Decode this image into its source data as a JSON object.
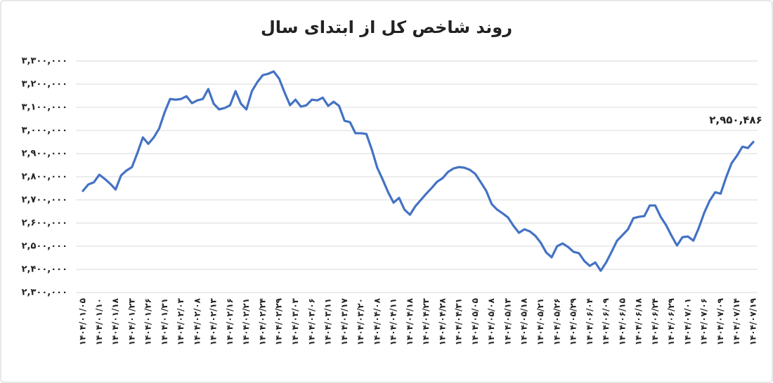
{
  "chart_data": {
    "type": "line",
    "title": "روند شاخص کل از ابتدای سال",
    "categories": [
      "۱۴۰۴/۰۱/۰۵",
      null,
      null,
      "۱۴۰۴/۰۱/۱۰",
      null,
      null,
      "۱۴۰۴/۰۱/۱۸",
      null,
      null,
      "۱۴۰۴/۰۱/۲۳",
      null,
      null,
      "۱۴۰۴/۰۱/۲۶",
      null,
      null,
      "۱۴۰۴/۰۱/۳۱",
      null,
      null,
      "۱۴۰۴/۰۲/۰۳",
      null,
      null,
      "۱۴۰۴/۰۲/۰۸",
      null,
      null,
      "۱۴۰۴/۰۲/۱۳",
      null,
      null,
      "۱۴۰۴/۰۲/۱۶",
      null,
      null,
      "۱۴۰۴/۰۲/۲۱",
      null,
      null,
      "۱۴۰۴/۰۲/۲۴",
      null,
      null,
      "۱۴۰۴/۰۲/۲۹",
      null,
      null,
      "۱۴۰۴/۰۳/۰۳",
      null,
      null,
      "۱۴۰۴/۰۳/۰۶",
      null,
      null,
      "۱۴۰۴/۰۳/۱۱",
      null,
      null,
      "۱۴۰۴/۰۳/۱۷",
      null,
      null,
      "۱۴۰۴/۰۳/۲۰",
      null,
      null,
      "۱۴۰۴/۰۴/۰۸",
      null,
      null,
      "۱۴۰۴/۰۴/۱۱",
      null,
      null,
      "۱۴۰۴/۰۴/۱۸",
      null,
      null,
      "۱۴۰۴/۰۴/۲۳",
      null,
      null,
      "۱۴۰۴/۰۴/۲۸",
      null,
      null,
      "۱۴۰۴/۰۴/۳۱",
      null,
      null,
      "۱۴۰۴/۰۵/۰۵",
      null,
      null,
      "۱۴۰۴/۰۵/۰۸",
      null,
      null,
      "۱۴۰۴/۰۵/۱۳",
      null,
      null,
      "۱۴۰۴/۰۵/۱۸",
      null,
      null,
      "۱۴۰۴/۰۵/۲۱",
      null,
      null,
      "۱۴۰۴/۰۵/۲۶",
      null,
      null,
      "۱۴۰۴/۰۵/۲۹",
      null,
      null,
      "۱۴۰۴/۰۶/۰۴",
      null,
      null,
      "۱۴۰۴/۰۶/۰۹",
      null,
      null,
      "۱۴۰۴/۰۶/۱۵",
      null,
      null,
      "۱۴۰۴/۰۶/۱۸",
      null,
      null,
      "۱۴۰۴/۰۶/۲۴",
      null,
      null,
      "۱۴۰۴/۰۶/۲۹",
      null,
      null,
      "۱۴۰۴/۰۷/۰۱",
      null,
      null,
      "۱۴۰۴/۰۷/۰۶",
      null,
      null,
      "۱۴۰۴/۰۷/۰۹",
      null,
      null,
      "۱۴۰۴/۰۷/۱۴",
      null,
      null,
      "۱۴۰۴/۰۷/۱۹"
    ],
    "values": [
      2739000,
      2767000,
      2776000,
      2809000,
      2791000,
      2770000,
      2745000,
      2806000,
      2827000,
      2842000,
      2903000,
      2970000,
      2942000,
      2970000,
      3009000,
      3079000,
      3136000,
      3133000,
      3136000,
      3148000,
      3118000,
      3130000,
      3136000,
      3179000,
      3115000,
      3091000,
      3097000,
      3109000,
      3170000,
      3115000,
      3091000,
      3170000,
      3209000,
      3239000,
      3245000,
      3255000,
      3224000,
      3164000,
      3109000,
      3133000,
      3103000,
      3109000,
      3133000,
      3130000,
      3142000,
      3106000,
      3124000,
      3106000,
      3042000,
      3036000,
      2988000,
      2988000,
      2985000,
      2918000,
      2839000,
      2788000,
      2733000,
      2688000,
      2709000,
      2658000,
      2636000,
      2673000,
      2700000,
      2727000,
      2752000,
      2779000,
      2794000,
      2821000,
      2836000,
      2842000,
      2839000,
      2830000,
      2812000,
      2776000,
      2739000,
      2682000,
      2658000,
      2642000,
      2624000,
      2588000,
      2558000,
      2573000,
      2564000,
      2545000,
      2515000,
      2473000,
      2452000,
      2500000,
      2512000,
      2497000,
      2476000,
      2470000,
      2436000,
      2415000,
      2430000,
      2394000,
      2430000,
      2476000,
      2524000,
      2548000,
      2573000,
      2621000,
      2627000,
      2630000,
      2676000,
      2676000,
      2627000,
      2591000,
      2545000,
      2503000,
      2539000,
      2542000,
      2524000,
      2579000,
      2645000,
      2697000,
      2733000,
      2727000,
      2797000,
      2858000,
      2891000,
      2930000,
      2924000,
      2950486
    ],
    "value_labels": [
      null,
      null,
      null,
      null,
      null,
      null,
      null,
      null,
      null,
      null,
      null,
      null,
      null,
      null,
      null,
      null,
      null,
      null,
      null,
      null,
      null,
      null,
      null,
      null,
      null,
      null,
      null,
      null,
      null,
      null,
      null,
      null,
      null,
      null,
      null,
      null,
      null,
      null,
      null,
      null,
      null,
      null,
      null,
      null,
      null,
      null,
      null,
      null,
      null,
      null,
      null,
      null,
      null,
      null,
      null,
      null,
      null,
      null,
      null,
      null,
      null,
      null,
      null,
      null,
      null,
      null,
      null,
      null,
      null,
      null,
      null,
      null,
      null,
      null,
      null,
      null,
      null,
      null,
      null,
      null,
      null,
      null,
      null,
      null,
      null,
      null,
      null,
      null,
      null,
      null,
      null,
      null,
      null,
      null,
      null,
      null,
      null,
      null,
      null,
      null,
      null,
      null,
      null,
      null,
      null,
      null,
      null,
      null,
      null,
      null,
      null,
      null,
      null,
      null,
      null,
      null,
      null,
      null,
      null,
      null,
      null,
      null,
      null,
      "۲,۹۵۰,۴۸۶"
    ],
    "color": "#4472c4",
    "ylim": [
      2300000,
      3300000
    ],
    "yticks": [
      {
        "value": 2300000,
        "label": "۲,۳۰۰,۰۰۰"
      },
      {
        "value": 2400000,
        "label": "۲,۴۰۰,۰۰۰"
      },
      {
        "value": 2500000,
        "label": "۲,۵۰۰,۰۰۰"
      },
      {
        "value": 2600000,
        "label": "۲,۶۰۰,۰۰۰"
      },
      {
        "value": 2700000,
        "label": "۲,۷۰۰,۰۰۰"
      },
      {
        "value": 2800000,
        "label": "۲,۸۰۰,۰۰۰"
      },
      {
        "value": 2900000,
        "label": "۲,۹۰۰,۰۰۰"
      },
      {
        "value": 3000000,
        "label": "۳,۰۰۰,۰۰۰"
      },
      {
        "value": 3100000,
        "label": "۳,۱۰۰,۰۰۰"
      },
      {
        "value": 3200000,
        "label": "۳,۲۰۰,۰۰۰"
      },
      {
        "value": 3300000,
        "label": "۳,۳۰۰,۰۰۰"
      }
    ],
    "grid": true
  }
}
